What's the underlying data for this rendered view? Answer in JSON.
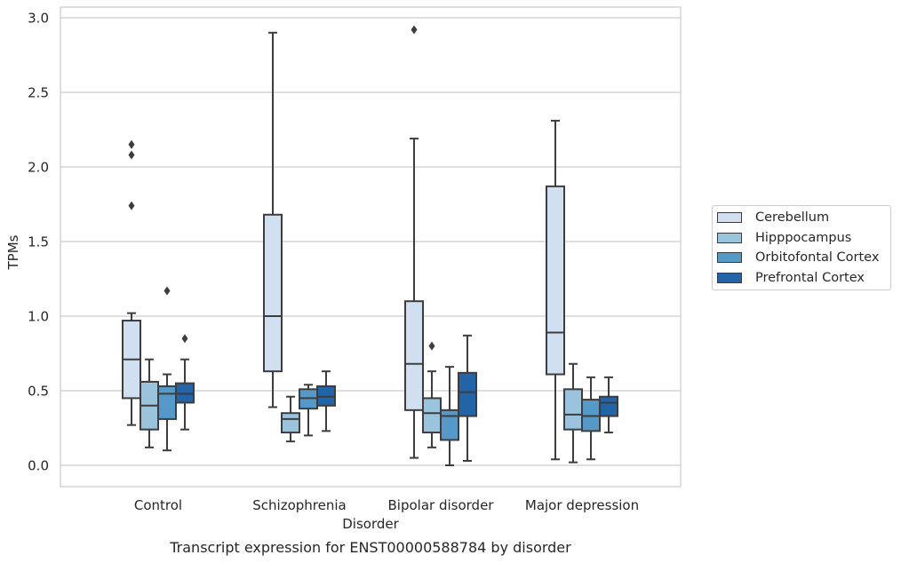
{
  "chart_data": {
    "type": "box",
    "title": "Transcript expression for ENST00000588784 by disorder",
    "xlabel": "Disorder",
    "ylabel": "TPMs",
    "ylim": [
      -0.14,
      3.08
    ],
    "yticks": [
      0.0,
      0.5,
      1.0,
      1.5,
      2.0,
      2.5,
      3.0
    ],
    "ytick_labels": [
      "0.0",
      "0.5",
      "1.0",
      "1.5",
      "2.0",
      "2.5",
      "3.0"
    ],
    "categories": [
      "Control",
      "Schizophrenia",
      "Bipolar disorder",
      "Major depression"
    ],
    "grid": "horizontal",
    "legend_position": "right",
    "series": [
      {
        "name": "Cerebellum",
        "color": "#d1e0f1",
        "boxes": [
          {
            "whislo": 0.27,
            "q1": 0.45,
            "med": 0.71,
            "q3": 0.97,
            "whishi": 1.02,
            "fliers": [
              1.74,
              2.08,
              2.15
            ]
          },
          {
            "whislo": 0.39,
            "q1": 0.63,
            "med": 1.0,
            "q3": 1.68,
            "whishi": 2.9,
            "fliers": []
          },
          {
            "whislo": 0.05,
            "q1": 0.37,
            "med": 0.68,
            "q3": 1.1,
            "whishi": 2.19,
            "fliers": [
              2.92
            ]
          },
          {
            "whislo": 0.04,
            "q1": 0.61,
            "med": 0.89,
            "q3": 1.87,
            "whishi": 2.31,
            "fliers": []
          }
        ]
      },
      {
        "name": "Hipppocampus",
        "color": "#9ac3de",
        "boxes": [
          {
            "whislo": 0.12,
            "q1": 0.24,
            "med": 0.4,
            "q3": 0.56,
            "whishi": 0.71,
            "fliers": []
          },
          {
            "whislo": 0.16,
            "q1": 0.22,
            "med": 0.31,
            "q3": 0.35,
            "whishi": 0.46,
            "fliers": []
          },
          {
            "whislo": 0.12,
            "q1": 0.22,
            "med": 0.35,
            "q3": 0.45,
            "whishi": 0.63,
            "fliers": [
              0.8
            ]
          },
          {
            "whislo": 0.02,
            "q1": 0.24,
            "med": 0.34,
            "q3": 0.51,
            "whishi": 0.68,
            "fliers": []
          }
        ]
      },
      {
        "name": "Orbitofontal Cortex",
        "color": "#5599c8",
        "boxes": [
          {
            "whislo": 0.1,
            "q1": 0.31,
            "med": 0.48,
            "q3": 0.53,
            "whishi": 0.61,
            "fliers": [
              1.17
            ]
          },
          {
            "whislo": 0.2,
            "q1": 0.38,
            "med": 0.45,
            "q3": 0.51,
            "whishi": 0.54,
            "fliers": []
          },
          {
            "whislo": 0.0,
            "q1": 0.17,
            "med": 0.33,
            "q3": 0.37,
            "whishi": 0.66,
            "fliers": []
          },
          {
            "whislo": 0.04,
            "q1": 0.23,
            "med": 0.33,
            "q3": 0.44,
            "whishi": 0.59,
            "fliers": []
          }
        ]
      },
      {
        "name": "Prefrontal Cortex",
        "color": "#2264a8",
        "boxes": [
          {
            "whislo": 0.24,
            "q1": 0.42,
            "med": 0.48,
            "q3": 0.55,
            "whishi": 0.71,
            "fliers": [
              0.85
            ]
          },
          {
            "whislo": 0.23,
            "q1": 0.4,
            "med": 0.46,
            "q3": 0.53,
            "whishi": 0.63,
            "fliers": []
          },
          {
            "whislo": 0.03,
            "q1": 0.33,
            "med": 0.49,
            "q3": 0.62,
            "whishi": 0.87,
            "fliers": []
          },
          {
            "whislo": 0.22,
            "q1": 0.33,
            "med": 0.42,
            "q3": 0.46,
            "whishi": 0.59,
            "fliers": []
          }
        ]
      }
    ]
  }
}
